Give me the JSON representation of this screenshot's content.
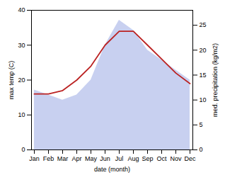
{
  "chart_data": {
    "type": "line",
    "categories": [
      "Jan",
      "Feb",
      "Mar",
      "Apr",
      "May",
      "Jun",
      "Jul",
      "Aug",
      "Sep",
      "Oct",
      "Nov",
      "Dec"
    ],
    "xlabel": "date (month)",
    "ylabel": "max temp (C)",
    "y2label": "med. precipitation (kg/m2)",
    "ylim": [
      0,
      40
    ],
    "yticks": [
      0,
      10,
      20,
      30,
      40
    ],
    "y2lim": [
      0,
      28
    ],
    "y2ticks": [
      0,
      5,
      10,
      15,
      20,
      25
    ],
    "grid": false,
    "series": [
      {
        "type": "area",
        "axis": "y2",
        "color": "#c8d0f0",
        "values": [
          12,
          11,
          10,
          11,
          14,
          21,
          26,
          24,
          20,
          18,
          16,
          14
        ]
      },
      {
        "type": "line",
        "color": "#bb2222",
        "values": [
          16,
          16,
          17,
          20,
          24,
          30,
          34,
          34,
          30,
          26,
          22,
          19
        ]
      }
    ]
  }
}
